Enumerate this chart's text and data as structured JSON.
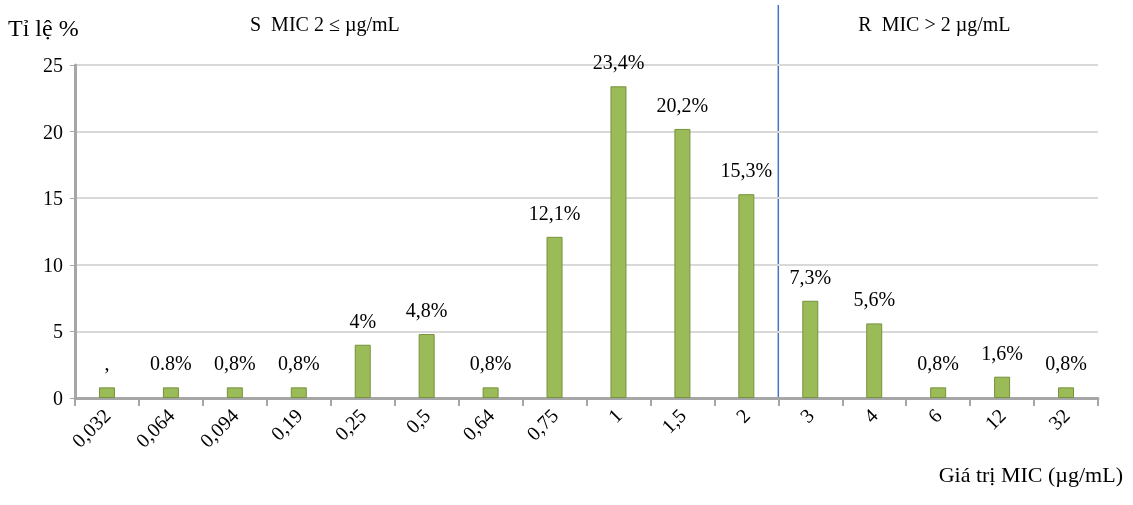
{
  "chart_data": {
    "type": "bar",
    "ylabel": "Tỉ lệ %",
    "xlabel": "Giá trị MIC (µg/mL)",
    "categories": [
      "0,032",
      "0,064",
      "0,094",
      "0,19",
      "0,25",
      "0,5",
      "0,64",
      "0,75",
      "1",
      "1,5",
      "2",
      "3",
      "4",
      "6",
      "12",
      "32"
    ],
    "values": [
      0.8,
      0.8,
      0.8,
      0.8,
      4,
      4.8,
      0.8,
      12.1,
      23.4,
      20.2,
      15.3,
      7.3,
      5.6,
      0.8,
      1.6,
      0.8
    ],
    "value_labels": [
      ",",
      "0.8%",
      "0,8%",
      "0,8%",
      "4%",
      "4,8%",
      "0,8%",
      "12,1%",
      "23,4%",
      "20,2%",
      "15,3%",
      "7,3%",
      "5,6%",
      "0,8%",
      "1,6%",
      "0,8%"
    ],
    "color": "#9bbb59",
    "ylim": [
      0,
      25
    ],
    "yticks": [
      0,
      5,
      10,
      15,
      20,
      25
    ],
    "grid": "y",
    "ref_lines": [
      {
        "axis": "x",
        "value": "2",
        "color": "#4472c4"
      }
    ],
    "annotations": [
      "S  MIC 2 ≤ µg/mL",
      "R  MIC > 2 µg/mL"
    ]
  }
}
